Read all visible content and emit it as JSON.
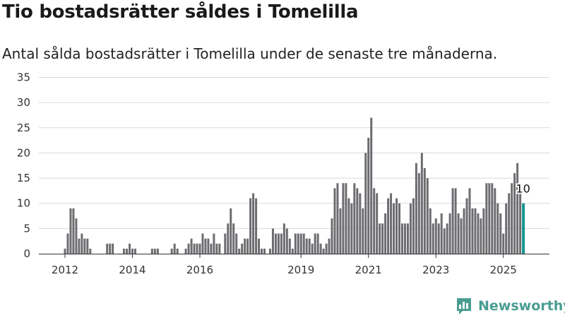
{
  "title": "Tio bostadsrätter såldes i Tomelilla",
  "subtitle": "Antal sålda bostadsrätter i Tomelilla under de senaste tre månaderna.",
  "brand": {
    "name": "Newsworthy",
    "icon": "newsworthy-logo-icon",
    "color": "#4a9d93"
  },
  "colors": {
    "bar": "#6d6c70",
    "highlight": "#16958f",
    "grid": "#d9d9d9",
    "axis": "#333333"
  },
  "chart_data": {
    "type": "bar",
    "title": "Tio bostadsrätter såldes i Tomelilla",
    "xlabel": "",
    "ylabel": "",
    "ylim": [
      0,
      35
    ],
    "yticks": [
      0,
      5,
      10,
      15,
      20,
      25,
      30,
      35
    ],
    "y_tick_labels": [
      "0",
      "5",
      "10",
      "15",
      "20",
      "25",
      "30",
      "35"
    ],
    "x_tick_labels": [
      "2012",
      "2014",
      "2016",
      "2019",
      "2021",
      "2023",
      "2025"
    ],
    "x_tick_months": [
      "2012-01",
      "2014-01",
      "2016-01",
      "2019-01",
      "2021-01",
      "2023-01",
      "2025-01"
    ],
    "grid": true,
    "legend": "none",
    "value_meaning": "rolling three-month total of sold units, monthly",
    "highlight_last": true,
    "annotation": {
      "month": "2025-08",
      "text": "10"
    },
    "series": [
      {
        "points": [
          [
            "2012-01",
            1
          ],
          [
            "2012-02",
            4
          ],
          [
            "2012-03",
            9
          ],
          [
            "2012-04",
            9
          ],
          [
            "2012-05",
            7
          ],
          [
            "2012-06",
            3
          ],
          [
            "2012-07",
            4
          ],
          [
            "2012-08",
            3
          ],
          [
            "2012-09",
            3
          ],
          [
            "2012-10",
            1
          ],
          [
            "2013-01",
            0
          ],
          [
            "2013-02",
            0
          ],
          [
            "2013-03",
            0
          ],
          [
            "2013-04",
            2
          ],
          [
            "2013-05",
            2
          ],
          [
            "2013-06",
            2
          ],
          [
            "2013-07",
            0
          ],
          [
            "2013-08",
            0
          ],
          [
            "2013-09",
            0
          ],
          [
            "2013-10",
            1
          ],
          [
            "2013-11",
            1
          ],
          [
            "2013-12",
            2
          ],
          [
            "2014-01",
            1
          ],
          [
            "2014-02",
            1
          ],
          [
            "2014-03",
            0
          ],
          [
            "2014-04",
            0
          ],
          [
            "2014-05",
            0
          ],
          [
            "2014-06",
            0
          ],
          [
            "2014-07",
            0
          ],
          [
            "2014-08",
            1
          ],
          [
            "2014-09",
            1
          ],
          [
            "2014-10",
            1
          ],
          [
            "2014-11",
            0
          ],
          [
            "2014-12",
            0
          ],
          [
            "2015-01",
            0
          ],
          [
            "2015-02",
            0
          ],
          [
            "2015-03",
            1
          ],
          [
            "2015-04",
            2
          ],
          [
            "2015-05",
            1
          ],
          [
            "2015-06",
            0
          ],
          [
            "2015-07",
            0
          ],
          [
            "2015-08",
            1
          ],
          [
            "2015-09",
            2
          ],
          [
            "2015-10",
            3
          ],
          [
            "2015-11",
            2
          ],
          [
            "2015-12",
            2
          ],
          [
            "2016-01",
            2
          ],
          [
            "2016-02",
            4
          ],
          [
            "2016-03",
            3
          ],
          [
            "2016-04",
            3
          ],
          [
            "2016-05",
            2
          ],
          [
            "2016-06",
            4
          ],
          [
            "2016-07",
            2
          ],
          [
            "2016-08",
            2
          ],
          [
            "2016-09",
            0
          ],
          [
            "2016-10",
            4
          ],
          [
            "2016-11",
            6
          ],
          [
            "2016-12",
            9
          ],
          [
            "2017-01",
            6
          ],
          [
            "2017-02",
            4
          ],
          [
            "2017-03",
            1
          ],
          [
            "2017-04",
            2
          ],
          [
            "2017-05",
            3
          ],
          [
            "2017-06",
            3
          ],
          [
            "2017-07",
            11
          ],
          [
            "2017-08",
            12
          ],
          [
            "2017-09",
            11
          ],
          [
            "2017-10",
            3
          ],
          [
            "2017-11",
            1
          ],
          [
            "2017-12",
            1
          ],
          [
            "2018-01",
            0
          ],
          [
            "2018-02",
            1
          ],
          [
            "2018-03",
            5
          ],
          [
            "2018-04",
            4
          ],
          [
            "2018-05",
            4
          ],
          [
            "2018-06",
            4
          ],
          [
            "2018-07",
            6
          ],
          [
            "2018-08",
            5
          ],
          [
            "2018-09",
            3
          ],
          [
            "2018-10",
            1
          ],
          [
            "2018-11",
            4
          ],
          [
            "2018-12",
            4
          ],
          [
            "2019-01",
            4
          ],
          [
            "2019-02",
            4
          ],
          [
            "2019-03",
            3
          ],
          [
            "2019-04",
            3
          ],
          [
            "2019-05",
            2
          ],
          [
            "2019-06",
            4
          ],
          [
            "2019-07",
            4
          ],
          [
            "2019-08",
            2
          ],
          [
            "2019-09",
            1
          ],
          [
            "2019-10",
            2
          ],
          [
            "2019-11",
            3
          ],
          [
            "2019-12",
            7
          ],
          [
            "2020-01",
            13
          ],
          [
            "2020-02",
            14
          ],
          [
            "2020-03",
            9
          ],
          [
            "2020-04",
            14
          ],
          [
            "2020-05",
            14
          ],
          [
            "2020-06",
            11
          ],
          [
            "2020-07",
            10
          ],
          [
            "2020-08",
            14
          ],
          [
            "2020-09",
            13
          ],
          [
            "2020-10",
            12
          ],
          [
            "2020-11",
            9
          ],
          [
            "2020-12",
            20
          ],
          [
            "2021-01",
            23
          ],
          [
            "2021-02",
            27
          ],
          [
            "2021-03",
            13
          ],
          [
            "2021-04",
            12
          ],
          [
            "2021-05",
            6
          ],
          [
            "2021-06",
            6
          ],
          [
            "2021-07",
            8
          ],
          [
            "2021-08",
            11
          ],
          [
            "2021-09",
            12
          ],
          [
            "2021-10",
            10
          ],
          [
            "2021-11",
            11
          ],
          [
            "2021-12",
            10
          ],
          [
            "2022-01",
            6
          ],
          [
            "2022-02",
            6
          ],
          [
            "2022-03",
            6
          ],
          [
            "2022-04",
            10
          ],
          [
            "2022-05",
            11
          ],
          [
            "2022-06",
            18
          ],
          [
            "2022-07",
            16
          ],
          [
            "2022-08",
            20
          ],
          [
            "2022-09",
            17
          ],
          [
            "2022-10",
            15
          ],
          [
            "2022-11",
            9
          ],
          [
            "2022-12",
            6
          ],
          [
            "2023-01",
            7
          ],
          [
            "2023-02",
            6
          ],
          [
            "2023-03",
            8
          ],
          [
            "2023-04",
            5
          ],
          [
            "2023-05",
            6
          ],
          [
            "2023-06",
            8
          ],
          [
            "2023-07",
            13
          ],
          [
            "2023-08",
            13
          ],
          [
            "2023-09",
            8
          ],
          [
            "2023-10",
            7
          ],
          [
            "2023-11",
            9
          ],
          [
            "2023-12",
            11
          ],
          [
            "2024-01",
            13
          ],
          [
            "2024-02",
            9
          ],
          [
            "2024-03",
            9
          ],
          [
            "2024-04",
            8
          ],
          [
            "2024-05",
            7
          ],
          [
            "2024-06",
            9
          ],
          [
            "2024-07",
            14
          ],
          [
            "2024-08",
            14
          ],
          [
            "2024-09",
            14
          ],
          [
            "2024-10",
            13
          ],
          [
            "2024-11",
            10
          ],
          [
            "2024-12",
            8
          ],
          [
            "2025-01",
            4
          ],
          [
            "2025-02",
            10
          ],
          [
            "2025-03",
            12
          ],
          [
            "2025-04",
            14
          ],
          [
            "2025-05",
            16
          ],
          [
            "2025-06",
            18
          ],
          [
            "2025-07",
            12
          ],
          [
            "2025-08",
            10
          ]
        ]
      }
    ]
  }
}
